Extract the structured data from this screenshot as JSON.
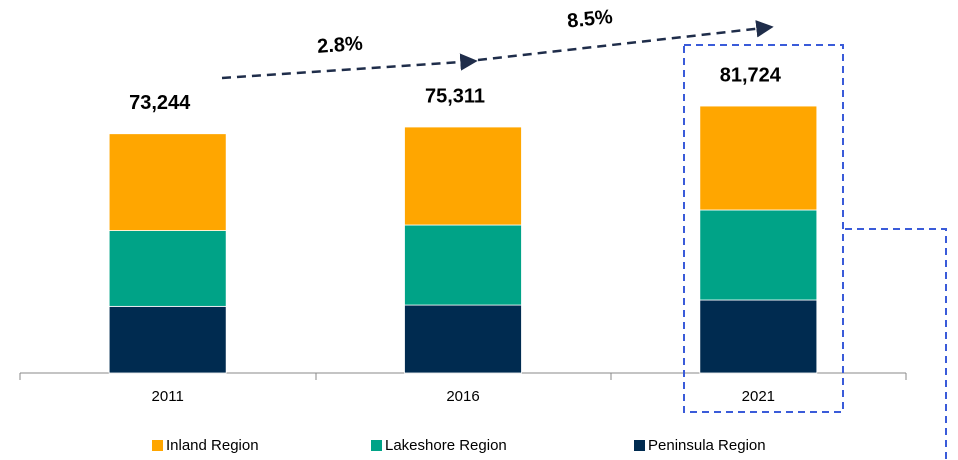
{
  "chart_data": {
    "type": "bar",
    "stacked": true,
    "categories": [
      "2011",
      "2016",
      "2021"
    ],
    "series": [
      {
        "name": "Inland Region",
        "color": "#ffa600",
        "values": [
          29644,
          30011,
          31824
        ]
      },
      {
        "name": "Lakeshore Region",
        "color": "#00a387",
        "values": [
          23200,
          24500,
          27550
        ]
      },
      {
        "name": "Peninsula Region",
        "color": "#002b50",
        "values": [
          20400,
          20800,
          22350
        ]
      }
    ],
    "totals": [
      73244,
      75311,
      81724
    ],
    "total_labels": [
      "73,244",
      "75,311",
      "81,724"
    ],
    "annotations": [
      "2.8%",
      "8.5%"
    ],
    "ylim": [
      0,
      90000
    ],
    "legend": "bottom"
  }
}
